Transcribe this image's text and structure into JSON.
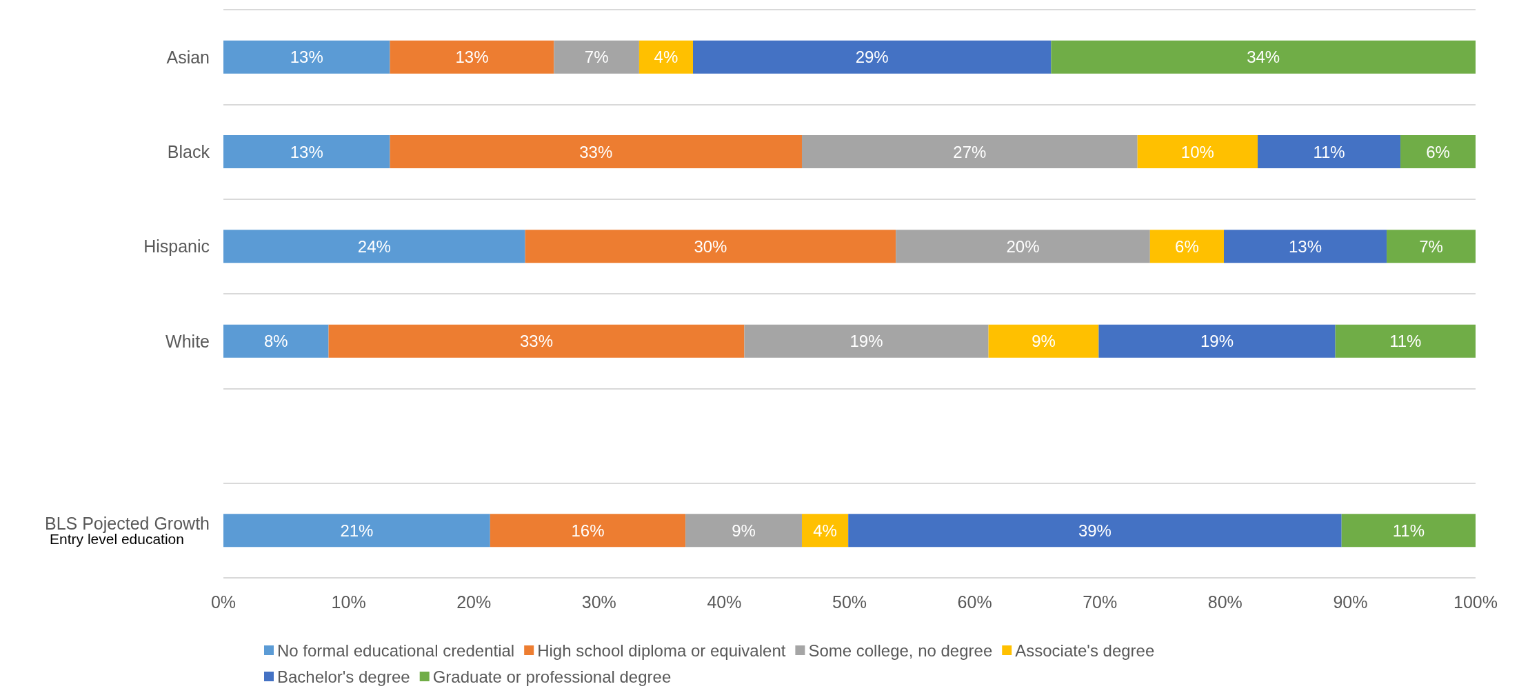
{
  "chart_data": {
    "type": "bar",
    "orientation": "horizontal",
    "stacked": true,
    "categories": [
      "Asian",
      "Black",
      "Hispanic",
      "White",
      null,
      "BLS Pojected Growth\nEntry level education"
    ],
    "series": [
      {
        "name": "No formal educational credential",
        "color": "#5b9bd5",
        "values": [
          13.3,
          13.3,
          24.1,
          8.4,
          null,
          21.3
        ],
        "value_labels": [
          "13%",
          "13%",
          "24%",
          "8%",
          null,
          "21%"
        ]
      },
      {
        "name": "High school diploma or equivalent",
        "color": "#ed7d31",
        "values": [
          13.1,
          32.9,
          29.6,
          33.2,
          null,
          15.6
        ],
        "value_labels": [
          "13%",
          "33%",
          "30%",
          "33%",
          null,
          "16%"
        ]
      },
      {
        "name": "Some college, no degree",
        "color": "#a5a5a5",
        "values": [
          6.8,
          26.8,
          20.3,
          19.5,
          null,
          9.3
        ],
        "value_labels": [
          "7%",
          "27%",
          "20%",
          "19%",
          null,
          "9%"
        ]
      },
      {
        "name": "Associate's degree",
        "color": "#ffc000",
        "values": [
          4.3,
          9.6,
          5.9,
          8.8,
          null,
          3.7
        ],
        "value_labels": [
          "4%",
          "10%",
          "6%",
          "9%",
          null,
          "4%"
        ]
      },
      {
        "name": "Bachelor's degree",
        "color": "#4472c4",
        "values": [
          28.6,
          11.4,
          13.0,
          18.9,
          null,
          39.4
        ],
        "value_labels": [
          "29%",
          "11%",
          "13%",
          "19%",
          null,
          "39%"
        ]
      },
      {
        "name": "Graduate or professional degree",
        "color": "#70ad47",
        "values": [
          33.9,
          6.0,
          7.1,
          11.2,
          null,
          10.7
        ],
        "value_labels": [
          "34%",
          "6%",
          "7%",
          "11%",
          null,
          "11%"
        ]
      }
    ],
    "xlim": [
      0,
      100
    ],
    "xticks": [
      {
        "value": 0,
        "label": "0%"
      },
      {
        "value": 10,
        "label": "10%"
      },
      {
        "value": 20,
        "label": "20%"
      },
      {
        "value": 30,
        "label": "30%"
      },
      {
        "value": 40,
        "label": "40%"
      },
      {
        "value": 50,
        "label": "50%"
      },
      {
        "value": 60,
        "label": "60%"
      },
      {
        "value": 70,
        "label": "70%"
      },
      {
        "value": 80,
        "label": "80%"
      },
      {
        "value": 90,
        "label": "90%"
      },
      {
        "value": 100,
        "label": "100%"
      }
    ],
    "grid": "y",
    "legend": "bottom"
  }
}
